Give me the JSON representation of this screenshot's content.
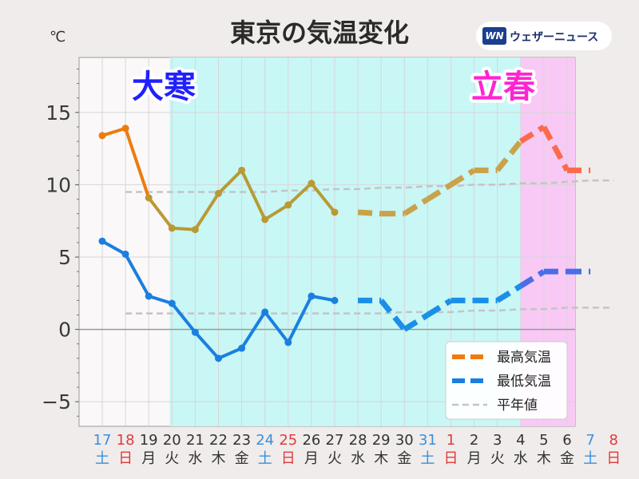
{
  "header": {
    "title": "東京の気温変化",
    "unit": "℃"
  },
  "brand": {
    "logo": "WN",
    "name": "ウェザーニュース"
  },
  "periods": [
    {
      "label": "大寒",
      "color": "#1f20ff",
      "band_color": "#c8f7f6"
    },
    {
      "label": "立春",
      "color": "#ff24d0",
      "band_color": "#f8c9f5"
    }
  ],
  "legend": {
    "placement": "bottom-right",
    "items": [
      "最高気温",
      "最低気温",
      "平年値"
    ]
  },
  "chart_data": {
    "type": "line",
    "x_dates": [
      "17",
      "18",
      "19",
      "20",
      "21",
      "22",
      "23",
      "24",
      "25",
      "26",
      "27",
      "28",
      "29",
      "30",
      "31",
      "1",
      "2",
      "3",
      "4",
      "5",
      "6",
      "7",
      "8"
    ],
    "x_weekdays": [
      "土",
      "日",
      "月",
      "火",
      "水",
      "木",
      "金",
      "土",
      "日",
      "月",
      "火",
      "水",
      "木",
      "金",
      "土",
      "日",
      "月",
      "火",
      "水",
      "木",
      "金",
      "土",
      "日"
    ],
    "x_label_colors": [
      "#3a8fdc",
      "#e03a3a",
      "#333333",
      "#333333",
      "#333333",
      "#333333",
      "#333333",
      "#3a8fdc",
      "#e03a3a",
      "#333333",
      "#333333",
      "#333333",
      "#333333",
      "#333333",
      "#3a8fdc",
      "#e03a3a",
      "#333333",
      "#333333",
      "#333333",
      "#333333",
      "#333333",
      "#3a8fdc",
      "#e03a3a"
    ],
    "ylim": [
      -6.7,
      18.8
    ],
    "yticks": [
      15,
      10,
      5,
      0,
      -5
    ],
    "ytick_labels": [
      "15",
      "10",
      "5",
      "0",
      "−5"
    ],
    "grid": true,
    "period_bands": [
      {
        "from_index": 2.9,
        "to_index": 18
      },
      {
        "from_index": 18,
        "to_index": 22.5
      }
    ],
    "series": [
      {
        "name": "最高気温",
        "observed_color": "#ee7b0f",
        "observed_color_2": "#b89a35",
        "forecast_colors": [
          "#c9a24a",
          "#fb6a4c"
        ],
        "observed_values": [
          13.4,
          13.9,
          9.1,
          7.0,
          6.9,
          9.4,
          11.0,
          7.6,
          8.6,
          10.1,
          8.1
        ],
        "forecast_values": [
          8.1,
          8.0,
          8.0,
          9.0,
          10.0,
          11.0,
          11.0,
          13.0,
          14.0,
          11.0,
          11.0
        ]
      },
      {
        "name": "最低気温",
        "observed_color": "#1a7fe0",
        "forecast_colors": [
          "#1a8fe8",
          "#4a6de8"
        ],
        "observed_values": [
          6.1,
          5.2,
          2.3,
          1.8,
          -0.2,
          -2.0,
          -1.3,
          1.2,
          -0.9,
          2.3,
          2.0
        ],
        "forecast_values": [
          2.0,
          2.0,
          0.0,
          1.0,
          2.0,
          2.0,
          2.0,
          3.0,
          4.0,
          4.0,
          4.0
        ]
      },
      {
        "name": "平年値",
        "color": "#c4c4c4",
        "values": [
          9.5,
          9.5,
          9.5,
          9.5,
          9.5,
          9.5,
          9.5,
          9.6,
          9.6,
          9.7,
          9.7,
          9.8,
          9.8,
          9.9,
          9.9,
          10.0,
          10.0,
          10.1,
          10.1,
          10.2,
          10.3,
          10.3
        ]
      },
      {
        "name": "平年値(最低)",
        "color": "#c4c4c4",
        "values": [
          1.1,
          1.1,
          1.1,
          1.1,
          1.1,
          1.1,
          1.1,
          1.1,
          1.1,
          1.1,
          1.1,
          1.1,
          1.2,
          1.2,
          1.2,
          1.3,
          1.3,
          1.4,
          1.4,
          1.5,
          1.5,
          1.5
        ]
      }
    ]
  }
}
